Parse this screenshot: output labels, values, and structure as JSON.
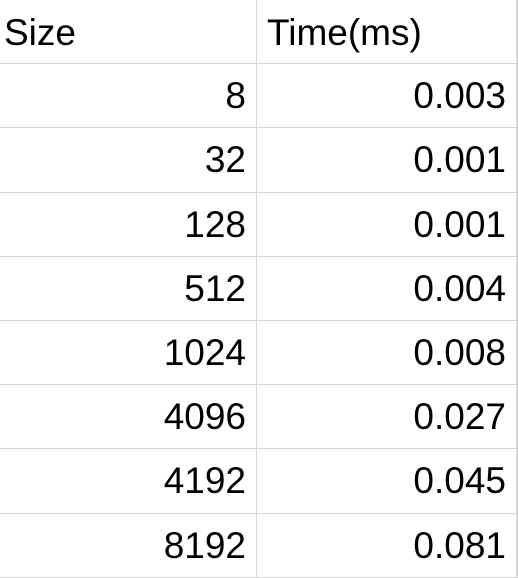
{
  "table": {
    "headers": [
      "Size",
      "Time(ms)"
    ],
    "rows": [
      {
        "size": "8",
        "time": "0.003"
      },
      {
        "size": "32",
        "time": "0.001"
      },
      {
        "size": "128",
        "time": "0.001"
      },
      {
        "size": "512",
        "time": "0.004"
      },
      {
        "size": "1024",
        "time": "0.008"
      },
      {
        "size": "4096",
        "time": "0.027"
      },
      {
        "size": "4192",
        "time": "0.045"
      },
      {
        "size": "8192",
        "time": "0.081"
      }
    ]
  }
}
